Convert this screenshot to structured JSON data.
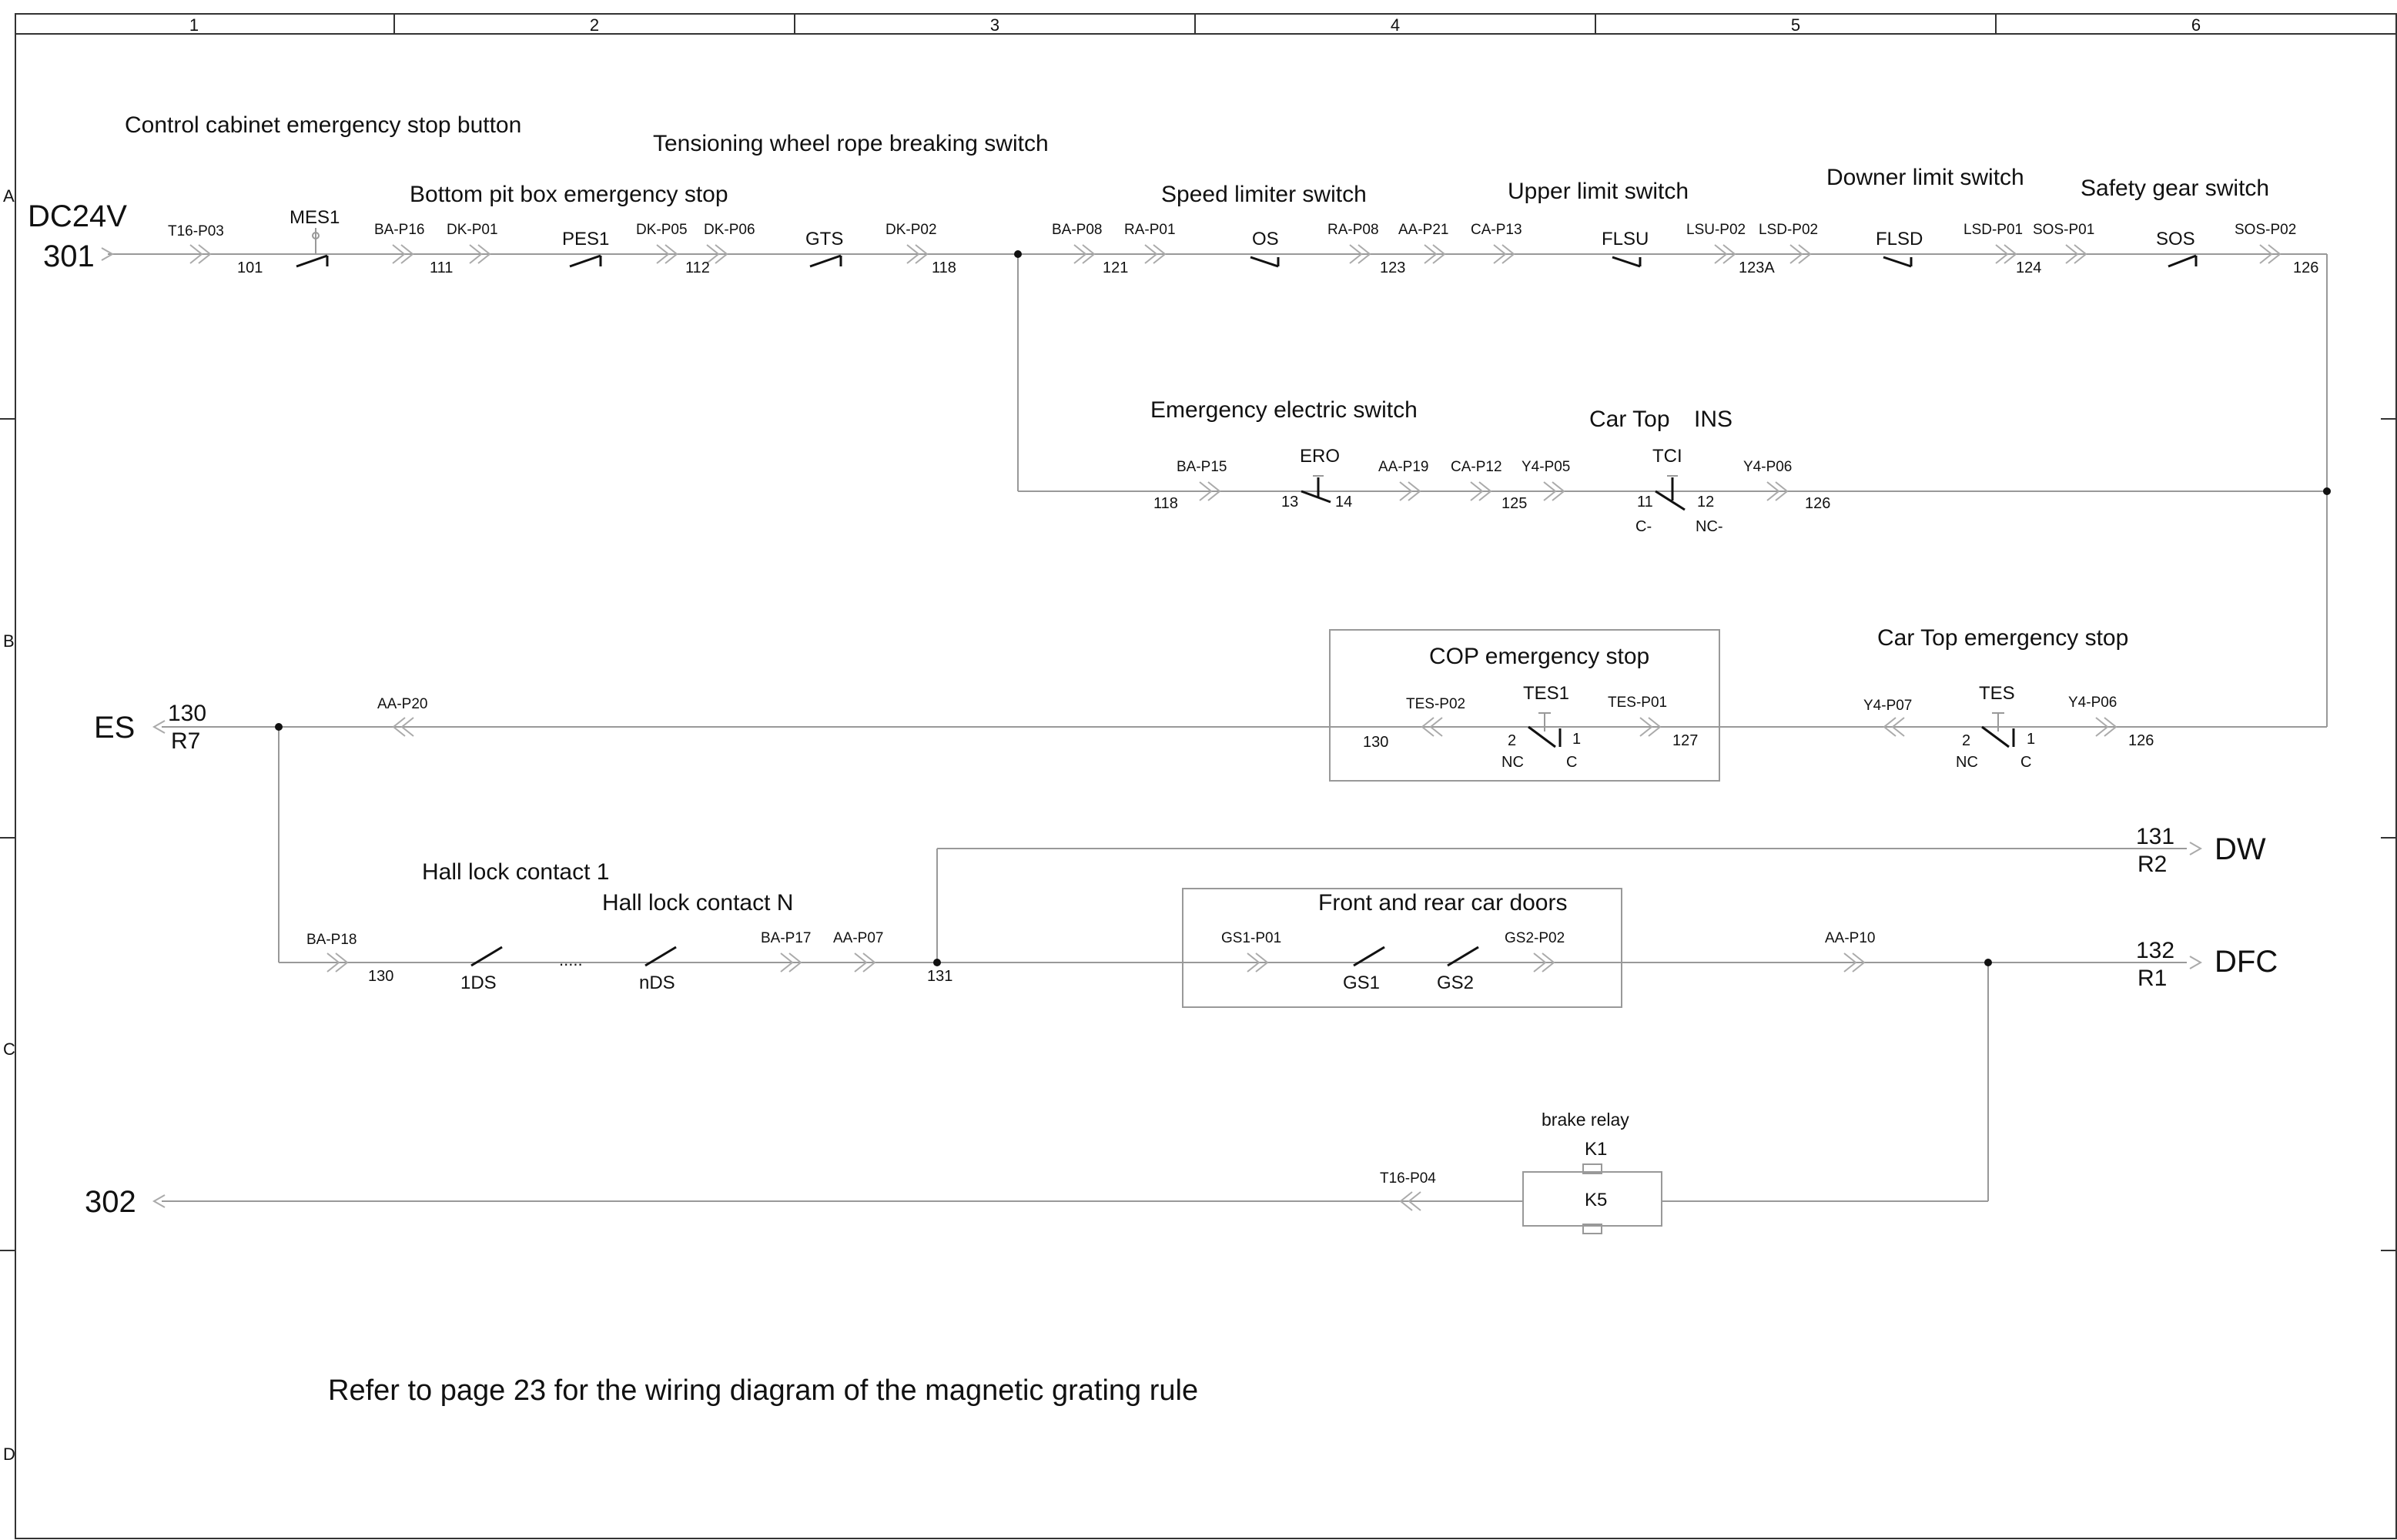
{
  "frame": {
    "columns": [
      "1",
      "2",
      "3",
      "4",
      "5",
      "6"
    ],
    "rows": [
      "A",
      "B",
      "C",
      "D"
    ]
  },
  "labels": {
    "control_cabinet_stop": "Control cabinet emergency stop button",
    "tension_wheel_switch": "Tensioning wheel rope breaking switch",
    "bottom_pit_stop": "Bottom pit box emergency stop",
    "speed_limiter_switch": "Speed limiter switch",
    "upper_limit_switch": "Upper limit switch",
    "downer_limit_switch": "Downer limit switch",
    "safety_gear_switch": "Safety gear switch",
    "emergency_electric_switch": "Emergency electric switch",
    "car_top": "Car Top",
    "ins": "INS",
    "cop_emergency_stop": "COP emergency stop",
    "car_top_emergency_stop": "Car Top emergency stop",
    "hall_lock_contact_1": "Hall lock contact 1",
    "hall_lock_contact_n": "Hall lock contact N",
    "front_rear_car_doors": "Front and rear car doors",
    "brake_relay": "brake relay",
    "note": "Refer to page 23 for the wiring diagram of the magnetic grating rule"
  },
  "terminals": {
    "dc24v": "DC24V",
    "n301": "301",
    "es": "ES",
    "es_130": "130",
    "es_r7": "R7",
    "dw": "DW",
    "dw_131": "131",
    "dw_r2": "R2",
    "dfc": "DFC",
    "dfc_132": "132",
    "dfc_r1": "R1",
    "n302": "302"
  },
  "components": {
    "mes1": "MES1",
    "pes1": "PES1",
    "gts": "GTS",
    "os": "OS",
    "flsu": "FLSU",
    "flsd": "FLSD",
    "sos": "SOS",
    "ero": "ERO",
    "tci": "TCI",
    "tes1": "TES1",
    "tes": "TES",
    "ds1": "1DS",
    "dsn": "nDS",
    "dots": ".....",
    "gs1": "GS1",
    "gs2": "GS2",
    "k1": "K1",
    "k5": "K5"
  },
  "connectors": {
    "t16_p03": "T16-P03",
    "ba_p16": "BA-P16",
    "dk_p01": "DK-P01",
    "dk_p05": "DK-P05",
    "dk_p06": "DK-P06",
    "dk_p02": "DK-P02",
    "ba_p08": "BA-P08",
    "ra_p01": "RA-P01",
    "ra_p08": "RA-P08",
    "aa_p21": "AA-P21",
    "ca_p13": "CA-P13",
    "lsu_p02": "LSU-P02",
    "lsd_p02": "LSD-P02",
    "lsd_p01": "LSD-P01",
    "sos_p01": "SOS-P01",
    "sos_p02": "SOS-P02",
    "ba_p15": "BA-P15",
    "aa_p19": "AA-P19",
    "ca_p12": "CA-P12",
    "y4_p05": "Y4-P05",
    "y4_p06_a": "Y4-P06",
    "aa_p20": "AA-P20",
    "tes_p02": "TES-P02",
    "tes_p01": "TES-P01",
    "y4_p07": "Y4-P07",
    "y4_p06_b": "Y4-P06",
    "ba_p18": "BA-P18",
    "ba_p17": "BA-P17",
    "aa_p07": "AA-P07",
    "gs1_p01": "GS1-P01",
    "gs2_p02": "GS2-P02",
    "aa_p10": "AA-P10",
    "t16_p04": "T16-P04"
  },
  "wires": {
    "w101": "101",
    "w111": "111",
    "w112": "112",
    "w118": "118",
    "w121": "121",
    "w123": "123",
    "w123a": "123A",
    "w124": "124",
    "w126": "126",
    "w118b": "118",
    "w125": "125",
    "w126b": "126",
    "w130": "130",
    "w127": "127",
    "w126c": "126",
    "w130b": "130",
    "w131": "131"
  },
  "pins": {
    "ero_13": "13",
    "ero_14": "14",
    "tci_11": "11",
    "tci_12": "12",
    "tci_c": "C-",
    "tci_nc": "NC-",
    "tes1_2": "2",
    "tes1_1": "1",
    "tes1_nc": "NC",
    "tes1_c": "C",
    "tes_2": "2",
    "tes_1": "1",
    "tes_nc": "NC",
    "tes_c": "C"
  }
}
